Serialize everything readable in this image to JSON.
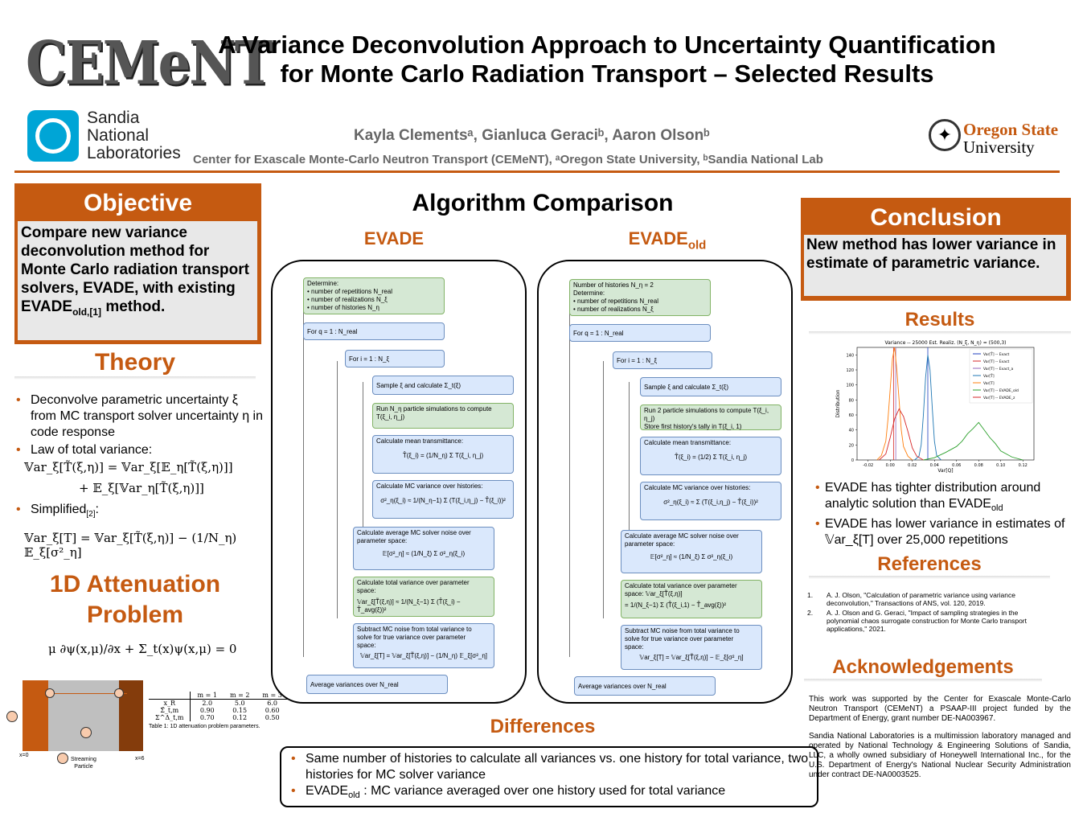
{
  "header": {
    "title_line1": "A Variance Deconvolution Approach to Uncertainty Quantification",
    "title_line2": "for Monte Carlo Radiation Transport – Selected Results",
    "authors": "Kayla Clementsᵃ, Gianluca Geraciᵇ, Aaron Olsonᵇ",
    "affiliation": "Center for Exascale Monte-Carlo Neutron Transport (CEMeNT), ᵃOregon State University, ᵇSandia National Lab",
    "logo_cement": "CEMeNT",
    "logo_sandia": [
      "Sandia",
      "National",
      "Laboratories"
    ],
    "logo_osu": [
      "Oregon State",
      "University"
    ]
  },
  "objective": {
    "title": "Objective",
    "text": "Compare new variance deconvolution method for Monte Carlo radiation transport solvers, EVADE, with existing EVADE",
    "sub": "old,[1]",
    "tail": "method."
  },
  "theory": {
    "title": "Theory",
    "b1": "Deconvolve parametric uncertainty ξ from MC transport solver uncertainty η in code response",
    "b2": "Law of total variance:",
    "eq1a": "𝕍ar_ξ[T̃(ξ,η)] = 𝕍ar_ξ[𝔼_η[T̃(ξ,η)]]",
    "eq1b": "+ 𝔼_ξ[𝕍ar_η[T̃(ξ,η)]]",
    "b3": "Simplified",
    "b3sub": "[2]",
    "b3tail": ":",
    "eq2": "𝕍ar_ξ[T] = 𝕍ar_ξ[T̃(ξ,η)] − (1/N_η) 𝔼_ξ[σ²_η]"
  },
  "attenuation": {
    "title_line1": "1D Attenuation",
    "title_line2": "Problem",
    "eq": "μ ∂ψ(x,μ)/∂x + Σ_t(x)ψ(x,μ) = 0",
    "x0": "x=0",
    "x6": "x=6",
    "particle": [
      "Streaming",
      "Particle"
    ],
    "table_caption": "Table 1: 1D attenuation problem parameters.",
    "table_head": [
      "",
      "m = 1",
      "m = 2",
      "m = 3"
    ],
    "table_rows": [
      [
        "x_R",
        "2.0",
        "5.0",
        "6.0"
      ],
      [
        "Σ̄_t,m",
        "0.90",
        "0.15",
        "0.60"
      ],
      [
        "Σ^Δ_t,m",
        "0.70",
        "0.12",
        "0.50"
      ]
    ]
  },
  "algorithm": {
    "title": "Algorithm Comparison",
    "evade_title": "EVADE",
    "evade_old_title": "EVADE",
    "evade_old_sub": "old",
    "evade": {
      "determine": [
        "Determine:",
        "• number of repetitions N_real",
        "• number of realizations N_ξ",
        "• number of histories N_η"
      ],
      "for_q": "For q = 1 : N_real",
      "for_i": "For i = 1 : N_ξ",
      "sample": "Sample ξ and calculate Σ_t(ξ)",
      "run": [
        "Run N_η particle simulations to compute",
        "T(ξ_i, η_j)"
      ],
      "mean": [
        "Calculate mean transmittance:",
        "T̂(ξ_i) = (1/N_η) Σ T(ξ_i, η_j)"
      ],
      "mcvar": [
        "Calculate MC variance over histories:",
        "σ²_η(ξ_i) ≈ 1/(N_η−1) Σ (T(ξ_i,η_j) − T̂(ξ_i))²"
      ],
      "avgnoise": [
        "Calculate average MC solver noise over",
        "parameter space:",
        "𝔼[σ²_η] ≈ (1/N_ξ) Σ σ²_η(ξ_i)"
      ],
      "totvar": [
        "Calculate total variance over parameter",
        "space:",
        "𝕍ar_ξ[T̃(ξ,η)] ≈ 1/(N_ξ−1) Σ (T̂(ξ_i) − T̂_avg(ξ))²"
      ],
      "subtract": [
        "Subtract MC noise from total variance to",
        "solve for true variance over parameter",
        "space:",
        "𝕍ar_ξ[T] = 𝕍ar_ξ[T̃(ξ,η)] − (1/N_η) 𝔼_ξ[σ²_η]"
      ],
      "average": "Average variances over N_real"
    },
    "evade_old": {
      "determine": [
        "Number of histories N_η = 2",
        "Determine:",
        "• number of repetitions N_real",
        "• number of realizations N_ξ"
      ],
      "for_q": "For q = 1 : N_real",
      "for_i": "For i = 1 : N_ξ",
      "sample": "Sample ξ and calculate Σ_t(ξ)",
      "run": [
        "Run 2 particle simulations to compute T(ξ_i, η_j)",
        "Store first history's tally in T(ξ_i, 1)"
      ],
      "mean": [
        "Calculate mean transmittance:",
        "T̂(ξ_i) = (1/2) Σ T(ξ_i, η_j)"
      ],
      "mcvar": [
        "Calculate MC variance over histories:",
        "σ²_η(ξ_i) ≈ Σ (T(ξ_i,η_j) − T̂(ξ_i))²"
      ],
      "avgnoise": [
        "Calculate average MC solver noise over",
        "parameter space:",
        "𝔼[σ²_η] ≈ (1/N_ξ) Σ σ²_η(ξ_i)"
      ],
      "totvar": [
        "Calculate total variance over parameter",
        "space: 𝕍ar_ξ[T̃(ξ,η)]",
        "= 1/(N_ξ−1) Σ (T̂(ξ_i,1) − T̂_avg(ξ))²"
      ],
      "subtract": [
        "Subtract MC noise from total variance to",
        "solve for true variance over parameter",
        "space:",
        "𝕍ar_ξ[T] = 𝕍ar_ξ[T̃(ξ,η)] − 𝔼_ξ[σ²_η]"
      ],
      "average": "Average variances over N_real"
    }
  },
  "differences": {
    "title": "Differences",
    "b1": "Same number of histories to calculate all variances vs. one history for total variance, two histories for MC solver variance",
    "b2a": "EVADE",
    "b2sub": "old",
    "b2b": " : MC variance averaged over one history used for total variance"
  },
  "conclusion": {
    "title": "Conclusion",
    "text": "New method has lower variance in estimate of parametric variance."
  },
  "results": {
    "title": "Results",
    "b1": "EVADE has tighter distribution around analytic solution than EVADE",
    "b1sub": "old",
    "b2": "EVADE has lower variance in estimates of 𝕍ar_ξ[T] over 25,000 repetitions"
  },
  "chart_data": {
    "type": "line",
    "title": "Variance -- 25000 Est. Realiz. (N_ξ, N_η) = (500,3)",
    "xlabel": "Var[Q]",
    "ylabel": "Distribution",
    "xlim": [
      -0.03,
      0.13
    ],
    "ylim": [
      0,
      150
    ],
    "xticks": [
      "-0.02",
      "0.00",
      "0.02",
      "0.04",
      "0.06",
      "0.08",
      "0.10",
      "0.12"
    ],
    "yticks": [
      "0",
      "20",
      "40",
      "60",
      "80",
      "100",
      "120",
      "140"
    ],
    "legend_position": "top-right",
    "series": [
      {
        "name": "Var[T̃] -- Exact",
        "color": "#1f3fbf",
        "kind": "vline",
        "x": 0.034
      },
      {
        "name": "Var[T] -- Exact",
        "color": "#d62728",
        "kind": "vline",
        "x": 0.003
      },
      {
        "name": "Var[T] -- Exact_a",
        "color": "#9467bd",
        "kind": "vline",
        "x": 0.005
      },
      {
        "name": "Var[T̃]",
        "color": "#1f77b4",
        "kind": "hist",
        "x": [
          0.022,
          0.026,
          0.028,
          0.03,
          0.032,
          0.034,
          0.036,
          0.038,
          0.04,
          0.042,
          0.046
        ],
        "y": [
          0,
          5,
          20,
          60,
          110,
          140,
          120,
          70,
          25,
          6,
          0
        ]
      },
      {
        "name": "Var[T]",
        "color": "#ff7f0e",
        "kind": "hist",
        "x": [
          -0.012,
          -0.008,
          -0.004,
          -0.002,
          0.0,
          0.002,
          0.004,
          0.006,
          0.008,
          0.01,
          0.012,
          0.016,
          0.02
        ],
        "y": [
          0,
          6,
          25,
          55,
          95,
          135,
          150,
          120,
          80,
          40,
          18,
          5,
          0
        ]
      },
      {
        "name": "Var[T] -- EVADE_old",
        "color": "#2ca02c",
        "kind": "hist",
        "x": [
          0.03,
          0.04,
          0.05,
          0.06,
          0.065,
          0.07,
          0.075,
          0.08,
          0.085,
          0.09,
          0.095,
          0.1,
          0.11,
          0.12
        ],
        "y": [
          0,
          3,
          10,
          18,
          25,
          35,
          42,
          50,
          40,
          30,
          22,
          12,
          4,
          0
        ]
      },
      {
        "name": "Var[T] -- EVADE_z",
        "color": "#d62728",
        "kind": "hist",
        "x": [
          -0.01,
          -0.004,
          0.0,
          0.004,
          0.008,
          0.012,
          0.016,
          0.02,
          0.024,
          0.03
        ],
        "y": [
          0,
          8,
          30,
          55,
          68,
          58,
          38,
          16,
          5,
          0
        ]
      }
    ]
  },
  "references": {
    "title": "References",
    "items": [
      "A. J. Olson, \"Calculation of parametric variance using variance deconvolution,\" Transactions of ANS, vol. 120, 2019.",
      "A. J. Olson and G. Geraci, \"Impact of sampling strategies in the polynomial chaos surrogate construction for Monte Carlo transport applications,\" 2021."
    ]
  },
  "acknowledgements": {
    "title": "Acknowledgements",
    "p1": "This work was supported by the Center for Exascale Monte-Carlo Neutron Transport (CEMeNT) a PSAAP-III project funded by the Department of Energy, grant number DE-NA003967.",
    "p2": "Sandia National Laboratories is a multimission laboratory managed and operated by National Technology & Engineering Solutions of Sandia, LLC, a wholly owned subsidiary of Honeywell International Inc., for the U.S. Department of Energy's National Nuclear Security Administration under contract DE-NA0003525."
  }
}
